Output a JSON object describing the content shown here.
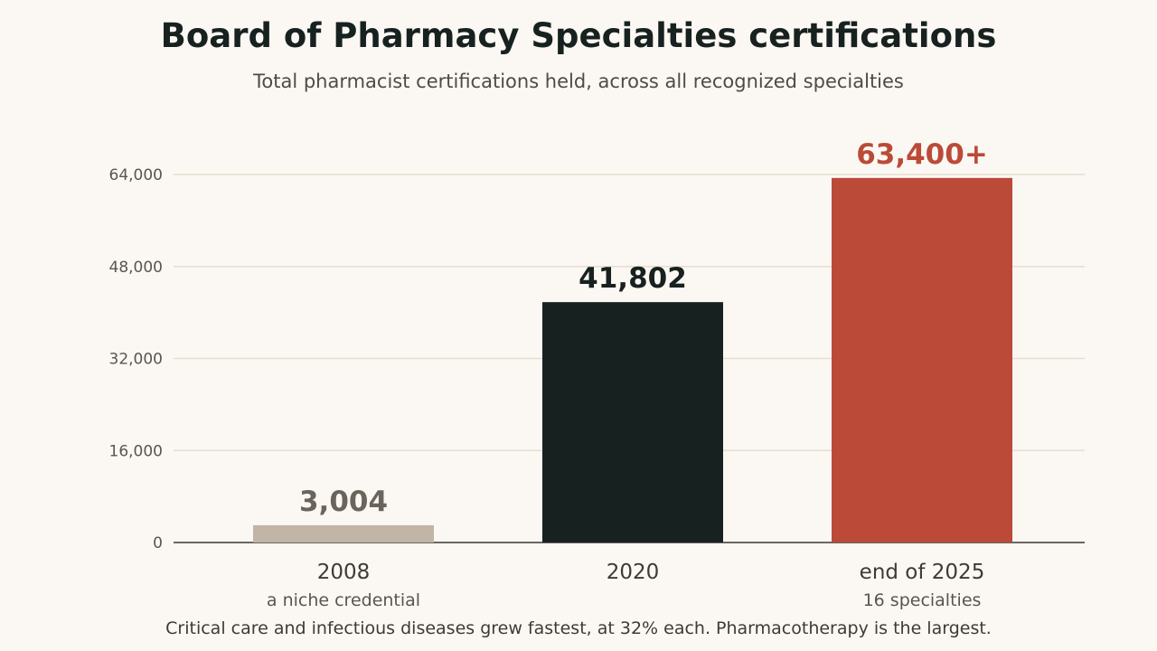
{
  "header": {
    "title": "Board of Pharmacy Specialties certifications",
    "subtitle": "Total pharmacist certifications held, across all recognized specialties"
  },
  "footnote": "Critical care and infectious diseases grew fastest, at 32% each. Pharmacotherapy is the largest.",
  "chart_data": {
    "type": "bar",
    "title": "Board of Pharmacy Specialties certifications",
    "subtitle": "Total pharmacist certifications held, across all recognized specialties",
    "categories": [
      "2008",
      "2020",
      "end of 2025"
    ],
    "category_sublabels": [
      "a niche credential",
      "",
      "16 specialties"
    ],
    "values": [
      3004,
      41802,
      63400
    ],
    "data_labels": [
      "3,004",
      "41,802",
      "63,400+"
    ],
    "bar_colors": [
      "#c0b5a6",
      "#172120",
      "#bb4a39"
    ],
    "label_colors": [
      "#6b645d",
      "#172120",
      "#bb4a39"
    ],
    "ylim": [
      0,
      64000
    ],
    "yticks": [
      0,
      16000,
      32000,
      48000,
      64000
    ],
    "ytick_labels": [
      "0",
      "16,000",
      "32,000",
      "48,000",
      "64,000"
    ],
    "grid": true,
    "legend": "none",
    "xlabel": "",
    "ylabel": ""
  }
}
